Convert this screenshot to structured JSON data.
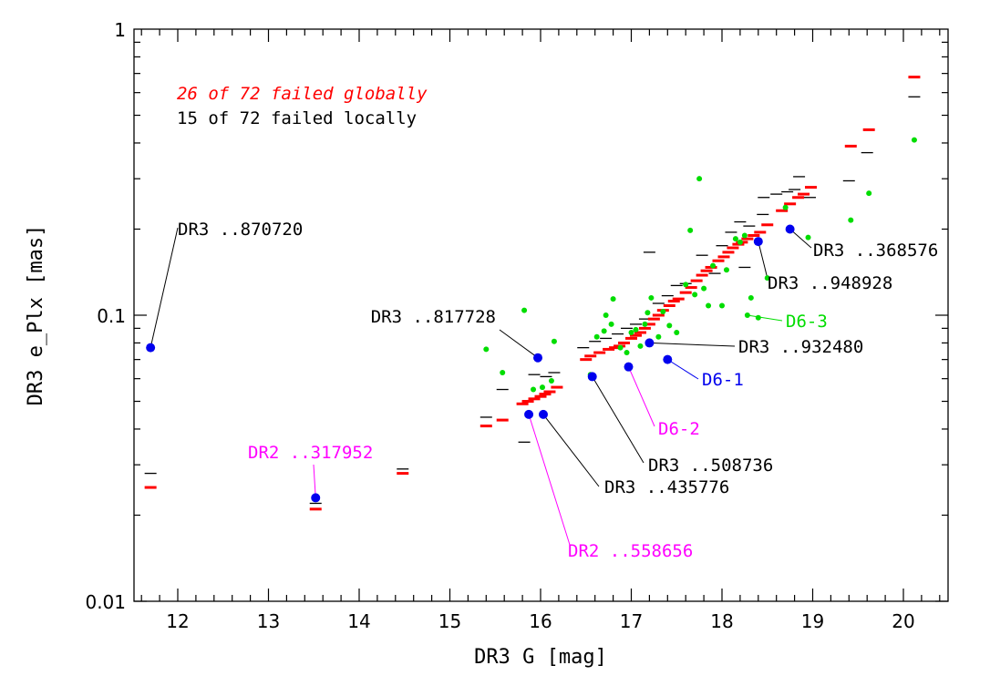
{
  "chart_data": {
    "type": "scatter",
    "title": "",
    "xlabel": "DR3 G [mag]",
    "ylabel": "DR3 e_Plx [mas]",
    "xlim": [
      11.5,
      20.5
    ],
    "ylim": [
      0.01,
      1
    ],
    "yscale": "log",
    "grid": false,
    "x_ticks": [
      12,
      13,
      14,
      15,
      16,
      17,
      18,
      19,
      20
    ],
    "y_ticks": [
      0.01,
      0.1,
      1
    ],
    "y_tick_labels": [
      "0.01",
      "0.1",
      "1"
    ],
    "colors": {
      "global": "#ff0000",
      "local": "#000000",
      "green": "#00dd00",
      "blue": "#0000ee",
      "magenta": "#ff00ff"
    },
    "stats": {
      "global_failed": "26 of 72 failed globally",
      "local_failed": "15 of 72 failed locally"
    },
    "series": [
      {
        "name": "red dashes (global)",
        "values": [
          [
            11.7,
            0.025
          ],
          [
            13.52,
            0.021
          ],
          [
            14.48,
            0.028
          ],
          [
            15.4,
            0.041
          ],
          [
            15.58,
            0.043
          ],
          [
            15.8,
            0.049
          ],
          [
            15.86,
            0.05
          ],
          [
            15.93,
            0.051
          ],
          [
            16.0,
            0.052
          ],
          [
            16.05,
            0.053
          ],
          [
            16.1,
            0.054
          ],
          [
            16.18,
            0.056
          ],
          [
            16.5,
            0.07
          ],
          [
            16.55,
            0.072
          ],
          [
            16.65,
            0.074
          ],
          [
            16.75,
            0.076
          ],
          [
            16.82,
            0.077
          ],
          [
            16.87,
            0.078
          ],
          [
            16.92,
            0.08
          ],
          [
            17.0,
            0.083
          ],
          [
            17.05,
            0.085
          ],
          [
            17.1,
            0.087
          ],
          [
            17.15,
            0.09
          ],
          [
            17.2,
            0.093
          ],
          [
            17.25,
            0.097
          ],
          [
            17.3,
            0.1
          ],
          [
            17.35,
            0.104
          ],
          [
            17.42,
            0.108
          ],
          [
            17.47,
            0.112
          ],
          [
            17.52,
            0.114
          ],
          [
            17.6,
            0.12
          ],
          [
            17.66,
            0.125
          ],
          [
            17.72,
            0.132
          ],
          [
            17.78,
            0.138
          ],
          [
            17.83,
            0.143
          ],
          [
            17.88,
            0.147
          ],
          [
            17.96,
            0.155
          ],
          [
            18.02,
            0.16
          ],
          [
            18.07,
            0.166
          ],
          [
            18.12,
            0.172
          ],
          [
            18.18,
            0.177
          ],
          [
            18.22,
            0.18
          ],
          [
            18.28,
            0.185
          ],
          [
            18.35,
            0.19
          ],
          [
            18.42,
            0.195
          ],
          [
            18.5,
            0.207
          ],
          [
            18.66,
            0.232
          ],
          [
            18.75,
            0.245
          ],
          [
            18.84,
            0.258
          ],
          [
            18.9,
            0.265
          ],
          [
            18.98,
            0.28
          ],
          [
            19.42,
            0.39
          ],
          [
            19.62,
            0.445
          ],
          [
            20.12,
            0.68
          ]
        ]
      },
      {
        "name": "black dashes (local)",
        "values": [
          [
            11.7,
            0.028
          ],
          [
            13.52,
            0.022
          ],
          [
            14.48,
            0.029
          ],
          [
            15.4,
            0.044
          ],
          [
            15.58,
            0.055
          ],
          [
            15.82,
            0.036
          ],
          [
            15.93,
            0.062
          ],
          [
            16.06,
            0.061
          ],
          [
            16.15,
            0.063
          ],
          [
            16.47,
            0.077
          ],
          [
            16.6,
            0.081
          ],
          [
            16.72,
            0.083
          ],
          [
            16.85,
            0.086
          ],
          [
            16.95,
            0.09
          ],
          [
            17.05,
            0.093
          ],
          [
            17.15,
            0.097
          ],
          [
            17.2,
            0.166
          ],
          [
            17.3,
            0.11
          ],
          [
            17.4,
            0.117
          ],
          [
            17.5,
            0.127
          ],
          [
            17.6,
            0.129
          ],
          [
            17.78,
            0.162
          ],
          [
            17.92,
            0.14
          ],
          [
            18.0,
            0.175
          ],
          [
            18.1,
            0.195
          ],
          [
            18.2,
            0.212
          ],
          [
            18.25,
            0.147
          ],
          [
            18.3,
            0.205
          ],
          [
            18.45,
            0.225
          ],
          [
            18.46,
            0.258
          ],
          [
            18.6,
            0.265
          ],
          [
            18.72,
            0.27
          ],
          [
            18.8,
            0.275
          ],
          [
            18.85,
            0.305
          ],
          [
            18.97,
            0.258
          ],
          [
            19.4,
            0.295
          ],
          [
            19.6,
            0.37
          ],
          [
            20.12,
            0.58
          ]
        ]
      },
      {
        "name": "green points",
        "values": [
          [
            15.4,
            0.076
          ],
          [
            15.58,
            0.063
          ],
          [
            15.82,
            0.104
          ],
          [
            15.92,
            0.055
          ],
          [
            16.02,
            0.056
          ],
          [
            16.12,
            0.059
          ],
          [
            16.15,
            0.081
          ],
          [
            16.55,
            0.062
          ],
          [
            16.62,
            0.084
          ],
          [
            16.7,
            0.088
          ],
          [
            16.72,
            0.1
          ],
          [
            16.78,
            0.093
          ],
          [
            16.8,
            0.114
          ],
          [
            16.88,
            0.077
          ],
          [
            16.95,
            0.074
          ],
          [
            17.0,
            0.087
          ],
          [
            17.05,
            0.089
          ],
          [
            17.1,
            0.078
          ],
          [
            17.15,
            0.093
          ],
          [
            17.18,
            0.102
          ],
          [
            17.22,
            0.115
          ],
          [
            17.3,
            0.084
          ],
          [
            17.35,
            0.103
          ],
          [
            17.42,
            0.092
          ],
          [
            17.5,
            0.087
          ],
          [
            17.6,
            0.128
          ],
          [
            17.65,
            0.198
          ],
          [
            17.7,
            0.118
          ],
          [
            17.75,
            0.3
          ],
          [
            17.8,
            0.124
          ],
          [
            17.85,
            0.108
          ],
          [
            17.9,
            0.149
          ],
          [
            18.0,
            0.108
          ],
          [
            18.05,
            0.144
          ],
          [
            18.15,
            0.185
          ],
          [
            18.2,
            0.18
          ],
          [
            18.25,
            0.19
          ],
          [
            18.28,
            0.1
          ],
          [
            18.32,
            0.115
          ],
          [
            18.4,
            0.098
          ],
          [
            18.5,
            0.135
          ],
          [
            18.7,
            0.238
          ],
          [
            18.95,
            0.187
          ],
          [
            19.42,
            0.215
          ],
          [
            19.62,
            0.267
          ],
          [
            20.12,
            0.41
          ]
        ]
      },
      {
        "name": "blue points (labeled sources)",
        "values": [
          [
            11.7,
            0.077
          ],
          [
            13.52,
            0.023
          ],
          [
            15.87,
            0.045
          ],
          [
            15.97,
            0.071
          ],
          [
            16.03,
            0.045
          ],
          [
            16.57,
            0.061
          ],
          [
            16.97,
            0.066
          ],
          [
            17.2,
            0.08
          ],
          [
            17.4,
            0.07
          ],
          [
            18.4,
            0.181
          ],
          [
            18.75,
            0.2
          ]
        ]
      }
    ],
    "annotations": [
      {
        "text": "DR3 ..870720",
        "color": "#000000",
        "point": [
          11.7,
          0.077
        ]
      },
      {
        "text": "DR2 ..317952",
        "color": "#ff00ff",
        "point": [
          13.52,
          0.023
        ]
      },
      {
        "text": "DR3 ..817728",
        "color": "#000000",
        "point": [
          15.97,
          0.071
        ]
      },
      {
        "text": "DR2 ..558656",
        "color": "#ff00ff",
        "point": [
          15.87,
          0.045
        ]
      },
      {
        "text": "DR3 ..435776",
        "color": "#000000",
        "point": [
          16.03,
          0.045
        ]
      },
      {
        "text": "DR3 ..508736",
        "color": "#000000",
        "point": [
          16.57,
          0.061
        ]
      },
      {
        "text": "D6-2",
        "color": "#ff00ff",
        "point": [
          16.97,
          0.066
        ]
      },
      {
        "text": "DR3 ..932480",
        "color": "#000000",
        "point": [
          17.2,
          0.08
        ]
      },
      {
        "text": "D6-1",
        "color": "#0000ee",
        "point": [
          17.4,
          0.07
        ]
      },
      {
        "text": "D6-3",
        "color": "#00dd00",
        "point": [
          18.28,
          0.1
        ]
      },
      {
        "text": "DR3 ..948928",
        "color": "#000000",
        "point": [
          18.4,
          0.181
        ]
      },
      {
        "text": "DR3 ..368576",
        "color": "#000000",
        "point": [
          18.75,
          0.2
        ]
      }
    ]
  }
}
